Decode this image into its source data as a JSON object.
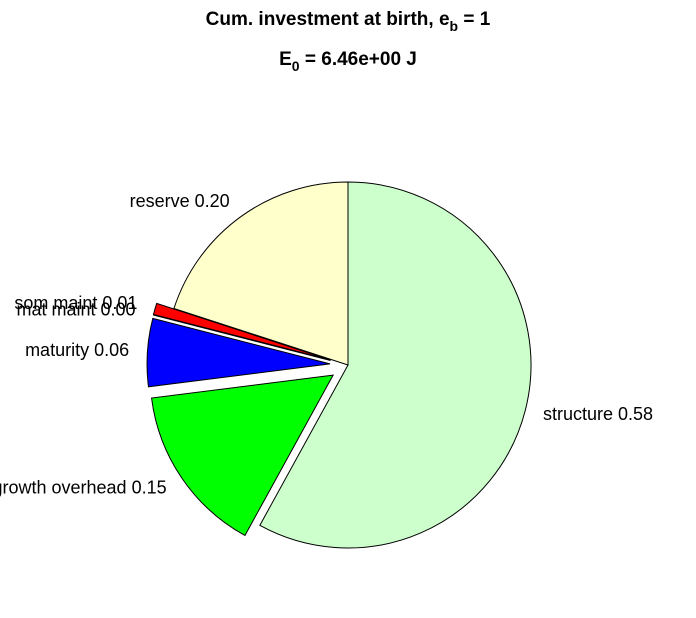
{
  "chart_data": {
    "type": "pie",
    "title": {
      "text": "Cum. investment at birth, e",
      "subscript": "b",
      "suffix": " = 1"
    },
    "subtitle": {
      "text": "E",
      "subscript": "0",
      "suffix": " = 6.46e+00 J"
    },
    "categories": [
      "structure",
      "growth overhead",
      "maturity",
      "mat maint",
      "som maint",
      "reserve"
    ],
    "values": [
      0.58,
      0.15,
      0.06,
      0.0,
      0.01,
      0.2
    ],
    "value_labels": [
      "0.58",
      "0.15",
      "0.06",
      "0.00",
      "0.01",
      "0.20"
    ],
    "colors": [
      "#ccffcc",
      "#00ff00",
      "#0000ff",
      "#ffffff",
      "#ff0000",
      "#ffffcc"
    ],
    "explode": [
      false,
      true,
      true,
      true,
      true,
      false
    ]
  }
}
